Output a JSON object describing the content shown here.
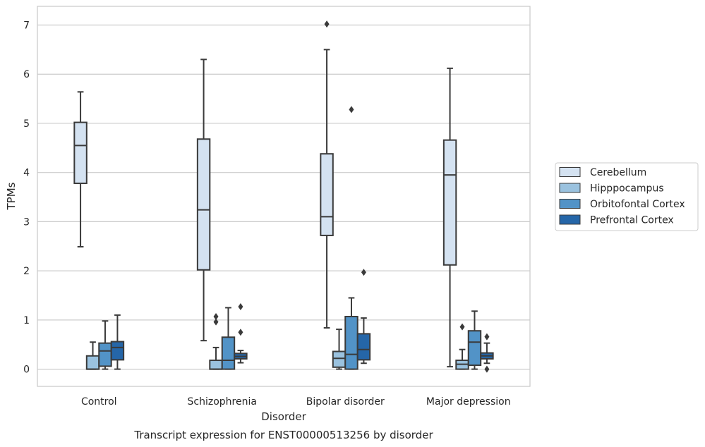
{
  "chart_data": {
    "type": "boxplot",
    "title": "Transcript expression for ENST00000513256 by disorder",
    "xlabel": "Disorder",
    "ylabel": "TPMs",
    "ylim": [
      -0.35,
      7.38
    ],
    "yticks": [
      "0",
      "1",
      "2",
      "3",
      "4",
      "5",
      "6",
      "7"
    ],
    "grid": true,
    "legend_position": "right",
    "categories": [
      "Control",
      "Schizophrenia",
      "Bipolar disorder",
      "Major depression"
    ],
    "series": [
      {
        "name": "Cerebellum",
        "color": "#d4e2f1",
        "boxes": [
          {
            "whislo": 2.49,
            "q1": 3.78,
            "med": 4.55,
            "q3": 5.02,
            "whishi": 5.64,
            "fliers": []
          },
          {
            "whislo": 0.58,
            "q1": 2.02,
            "med": 3.24,
            "q3": 4.68,
            "whishi": 6.3,
            "fliers": []
          },
          {
            "whislo": 0.84,
            "q1": 2.72,
            "med": 3.1,
            "q3": 4.38,
            "whishi": 6.5,
            "fliers": [
              7.02
            ]
          },
          {
            "whislo": 0.05,
            "q1": 2.12,
            "med": 3.95,
            "q3": 4.66,
            "whishi": 6.12,
            "fliers": []
          }
        ]
      },
      {
        "name": "Hipppocampus",
        "color": "#9ac2df",
        "boxes": [
          {
            "whislo": 0.0,
            "q1": 0.0,
            "med": 0.0,
            "q3": 0.27,
            "whishi": 0.55,
            "fliers": []
          },
          {
            "whislo": 0.0,
            "q1": 0.0,
            "med": 0.0,
            "q3": 0.18,
            "whishi": 0.44,
            "fliers": [
              0.96,
              1.07
            ]
          },
          {
            "whislo": 0.0,
            "q1": 0.04,
            "med": 0.22,
            "q3": 0.36,
            "whishi": 0.81,
            "fliers": []
          },
          {
            "whislo": 0.0,
            "q1": 0.0,
            "med": 0.1,
            "q3": 0.18,
            "whishi": 0.4,
            "fliers": [
              0.86
            ]
          }
        ]
      },
      {
        "name": "Orbitofontal Cortex",
        "color": "#5293c7",
        "boxes": [
          {
            "whislo": 0.0,
            "q1": 0.06,
            "med": 0.37,
            "q3": 0.53,
            "whishi": 0.98,
            "fliers": []
          },
          {
            "whislo": 0.0,
            "q1": 0.0,
            "med": 0.18,
            "q3": 0.65,
            "whishi": 1.25,
            "fliers": []
          },
          {
            "whislo": 0.0,
            "q1": 0.0,
            "med": 0.3,
            "q3": 1.07,
            "whishi": 1.45,
            "fliers": [
              5.28
            ]
          },
          {
            "whislo": 0.0,
            "q1": 0.08,
            "med": 0.55,
            "q3": 0.78,
            "whishi": 1.18,
            "fliers": []
          }
        ]
      },
      {
        "name": "Prefrontal Cortex",
        "color": "#2566a8",
        "boxes": [
          {
            "whislo": 0.0,
            "q1": 0.19,
            "med": 0.44,
            "q3": 0.56,
            "whishi": 1.1,
            "fliers": []
          },
          {
            "whislo": 0.13,
            "q1": 0.21,
            "med": 0.26,
            "q3": 0.32,
            "whishi": 0.38,
            "fliers": [
              0.75,
              1.27
            ]
          },
          {
            "whislo": 0.12,
            "q1": 0.19,
            "med": 0.4,
            "q3": 0.72,
            "whishi": 1.04,
            "fliers": [
              1.97
            ]
          },
          {
            "whislo": 0.12,
            "q1": 0.21,
            "med": 0.27,
            "q3": 0.33,
            "whishi": 0.53,
            "fliers": [
              0.0,
              0.66
            ]
          }
        ]
      }
    ]
  }
}
